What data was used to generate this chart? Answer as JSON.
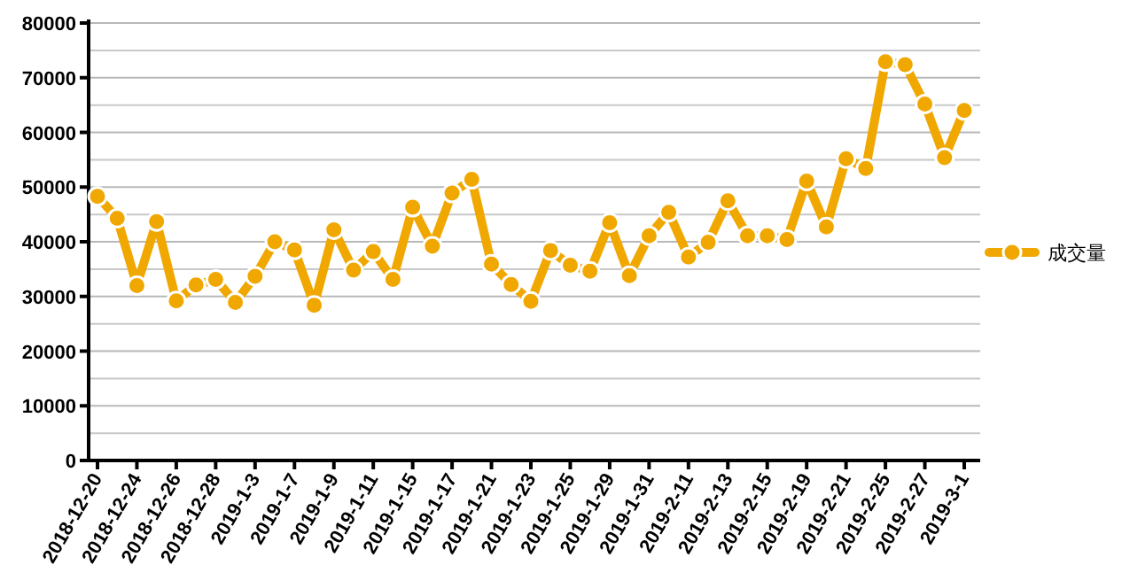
{
  "chart_data": {
    "type": "line",
    "categories": [
      "2018-12-20",
      null,
      "2018-12-24",
      null,
      "2018-12-26",
      null,
      "2018-12-28",
      null,
      "2019-1-3",
      null,
      "2019-1-7",
      null,
      "2019-1-9",
      null,
      "2019-1-11",
      null,
      "2019-1-15",
      null,
      "2019-1-17",
      null,
      "2019-1-21",
      null,
      "2019-1-23",
      null,
      "2019-1-25",
      null,
      "2019-1-29",
      null,
      "2019-1-31",
      null,
      "2019-2-11",
      null,
      "2019-2-13",
      null,
      "2019-2-15",
      null,
      "2019-2-19",
      null,
      "2019-2-21",
      null,
      "2019-2-25",
      null,
      "2019-2-27",
      null,
      "2019-3-1"
    ],
    "series": [
      {
        "name": "成交量",
        "color": "#f0a800",
        "values": [
          48300,
          44300,
          32000,
          43700,
          29200,
          32100,
          33100,
          28900,
          33700,
          40000,
          38500,
          28400,
          42200,
          34800,
          38200,
          33100,
          46300,
          39200,
          48900,
          51400,
          35900,
          32200,
          29100,
          38400,
          35700,
          34600,
          43500,
          33800,
          41100,
          45400,
          37200,
          39900,
          47500,
          41100,
          41100,
          40400,
          51100,
          42700,
          55200,
          53400,
          72900,
          72400,
          65200,
          55400,
          64000
        ]
      }
    ],
    "ylim": [
      0,
      80000
    ],
    "yticks": [
      0,
      10000,
      20000,
      30000,
      40000,
      50000,
      60000,
      70000,
      80000
    ],
    "grid": "y",
    "legend": "right",
    "marker": "circle",
    "line_style": "solid"
  }
}
